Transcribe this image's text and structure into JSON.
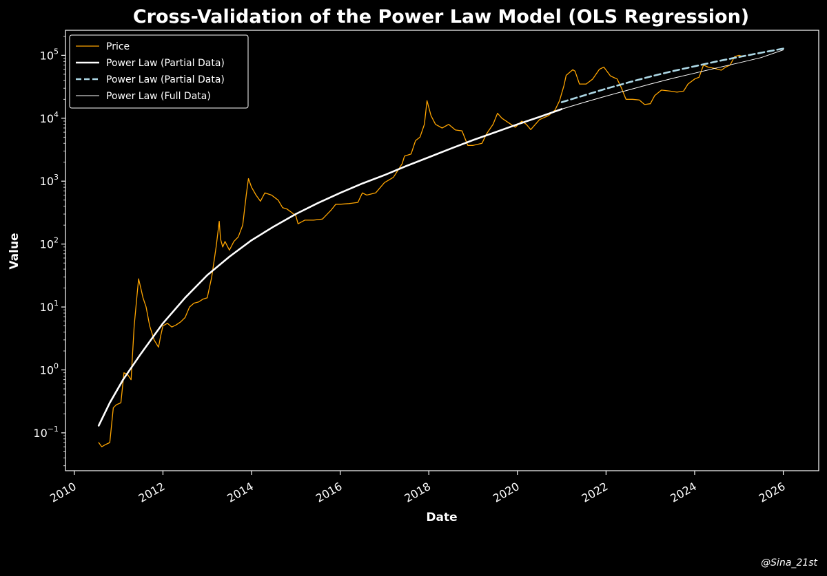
{
  "chart_data": {
    "type": "line",
    "title": "Cross-Validation of the Power Law Model (OLS Regression)",
    "xlabel": "Date",
    "ylabel": "Value",
    "yscale": "log",
    "xlim": [
      2009.8,
      2026.8
    ],
    "ylim": [
      0.025,
      250000
    ],
    "x_ticks": [
      2010,
      2012,
      2014,
      2016,
      2018,
      2020,
      2022,
      2024,
      2026
    ],
    "x_tick_labels": [
      "2010",
      "2012",
      "2014",
      "2016",
      "2018",
      "2020",
      "2022",
      "2024",
      "2026"
    ],
    "y_ticks": [
      0.1,
      1,
      10,
      100,
      1000,
      10000,
      100000
    ],
    "y_tick_labels": [
      {
        "base": "10",
        "exp": "−1"
      },
      {
        "base": "10",
        "exp": "0"
      },
      {
        "base": "10",
        "exp": "1"
      },
      {
        "base": "10",
        "exp": "2"
      },
      {
        "base": "10",
        "exp": "3"
      },
      {
        "base": "10",
        "exp": "4"
      },
      {
        "base": "10",
        "exp": "5"
      }
    ],
    "legend_position": "top-left",
    "series": [
      {
        "name": "Price",
        "color": "#FFA500",
        "style": "solid",
        "x": [
          2010.55,
          2010.62,
          2010.7,
          2010.8,
          2010.88,
          2010.95,
          2011.05,
          2011.12,
          2011.2,
          2011.28,
          2011.35,
          2011.42,
          2011.45,
          2011.5,
          2011.55,
          2011.62,
          2011.7,
          2011.8,
          2011.9,
          2011.95,
          2012.0,
          2012.1,
          2012.2,
          2012.3,
          2012.4,
          2012.5,
          2012.6,
          2012.7,
          2012.8,
          2012.9,
          2013.0,
          2013.1,
          2013.2,
          2013.27,
          2013.3,
          2013.35,
          2013.4,
          2013.5,
          2013.6,
          2013.7,
          2013.8,
          2013.88,
          2013.93,
          2014.0,
          2014.1,
          2014.2,
          2014.3,
          2014.45,
          2014.6,
          2014.7,
          2014.8,
          2014.9,
          2015.0,
          2015.05,
          2015.2,
          2015.4,
          2015.6,
          2015.8,
          2015.9,
          2016.0,
          2016.2,
          2016.4,
          2016.5,
          2016.6,
          2016.8,
          2017.0,
          2017.2,
          2017.4,
          2017.45,
          2017.6,
          2017.7,
          2017.8,
          2017.9,
          2017.96,
          2018.05,
          2018.15,
          2018.3,
          2018.45,
          2018.6,
          2018.75,
          2018.88,
          2019.0,
          2019.2,
          2019.3,
          2019.45,
          2019.55,
          2019.65,
          2019.8,
          2019.95,
          2020.1,
          2020.2,
          2020.3,
          2020.5,
          2020.7,
          2020.85,
          2020.95,
          2021.05,
          2021.1,
          2021.25,
          2021.3,
          2021.4,
          2021.55,
          2021.7,
          2021.85,
          2021.95,
          2022.1,
          2022.25,
          2022.35,
          2022.45,
          2022.6,
          2022.75,
          2022.87,
          2023.0,
          2023.1,
          2023.25,
          2023.45,
          2023.6,
          2023.75,
          2023.85,
          2024.0,
          2024.1,
          2024.2,
          2024.3,
          2024.45,
          2024.6,
          2024.7,
          2024.8,
          2024.9,
          2025.0,
          2025.1
        ],
        "y": [
          0.07,
          0.06,
          0.065,
          0.07,
          0.25,
          0.28,
          0.3,
          0.9,
          0.85,
          0.7,
          5,
          17,
          28,
          20,
          14,
          10,
          5,
          3,
          2.3,
          3.5,
          5,
          5.5,
          4.8,
          5.2,
          5.8,
          6.8,
          10,
          11.5,
          12,
          13.3,
          14,
          30,
          90,
          230,
          120,
          90,
          110,
          80,
          110,
          130,
          200,
          600,
          1100,
          800,
          600,
          480,
          650,
          600,
          500,
          380,
          360,
          320,
          280,
          210,
          240,
          240,
          250,
          350,
          430,
          430,
          440,
          460,
          650,
          600,
          650,
          950,
          1150,
          1900,
          2500,
          2700,
          4400,
          5000,
          8000,
          19000,
          11000,
          8000,
          7000,
          8000,
          6500,
          6300,
          3700,
          3700,
          4000,
          5600,
          8000,
          12000,
          10000,
          8500,
          7200,
          9000,
          8000,
          6600,
          9500,
          11000,
          13500,
          19000,
          33000,
          48000,
          59000,
          56000,
          35000,
          35000,
          42000,
          60000,
          65000,
          47000,
          42000,
          30000,
          20000,
          20000,
          19500,
          16500,
          17000,
          23000,
          28000,
          27000,
          26000,
          27000,
          35000,
          42000,
          45000,
          70000,
          65000,
          62000,
          58000,
          65000,
          70000,
          95000,
          100000,
          95000
        ]
      },
      {
        "name": "Power Law (Partial Data)",
        "color": "#FFFFFF",
        "style": "solid-thick",
        "x": [
          2010.55,
          2010.8,
          2011.1,
          2011.5,
          2012.0,
          2012.5,
          2013.0,
          2013.5,
          2014.0,
          2014.5,
          2015.0,
          2015.5,
          2016.0,
          2016.5,
          2017.0,
          2017.5,
          2018.0,
          2018.5,
          2019.0,
          2019.5,
          2020.0,
          2020.5,
          2021.0
        ],
        "y": [
          0.13,
          0.3,
          0.7,
          1.8,
          5.5,
          14,
          32,
          63,
          115,
          190,
          300,
          450,
          650,
          920,
          1250,
          1750,
          2400,
          3300,
          4500,
          6000,
          8000,
          10500,
          14000
        ]
      },
      {
        "name": "Power Law (Partial Data)",
        "color": "#ADD8E6",
        "style": "dashed",
        "x": [
          2021.0,
          2021.5,
          2022.0,
          2022.5,
          2023.0,
          2023.5,
          2024.0,
          2024.5,
          2025.0,
          2025.5,
          2026.0
        ],
        "y": [
          18000,
          23000,
          29500,
          37000,
          46000,
          56000,
          67000,
          80000,
          94000,
          110000,
          128000
        ]
      },
      {
        "name": "Power Law (Full Data)",
        "color": "#FFFFFF",
        "style": "solid-thin",
        "x": [
          2010.55,
          2010.8,
          2011.1,
          2011.5,
          2012.0,
          2012.5,
          2013.0,
          2013.5,
          2014.0,
          2014.5,
          2015.0,
          2015.5,
          2016.0,
          2016.5,
          2017.0,
          2017.5,
          2018.0,
          2018.5,
          2019.0,
          2019.5,
          2020.0,
          2020.5,
          2021.0,
          2021.5,
          2022.0,
          2022.5,
          2023.0,
          2023.5,
          2024.0,
          2024.5,
          2025.0,
          2025.5,
          2026.0
        ],
        "y": [
          0.13,
          0.3,
          0.7,
          1.8,
          5.5,
          14,
          32,
          63,
          115,
          190,
          300,
          450,
          650,
          920,
          1250,
          1750,
          2400,
          3300,
          4500,
          6000,
          8000,
          10500,
          14000,
          17800,
          22500,
          28000,
          35000,
          43000,
          52000,
          63000,
          76000,
          92000,
          122000
        ]
      }
    ]
  },
  "watermark": "@Sina_21st"
}
